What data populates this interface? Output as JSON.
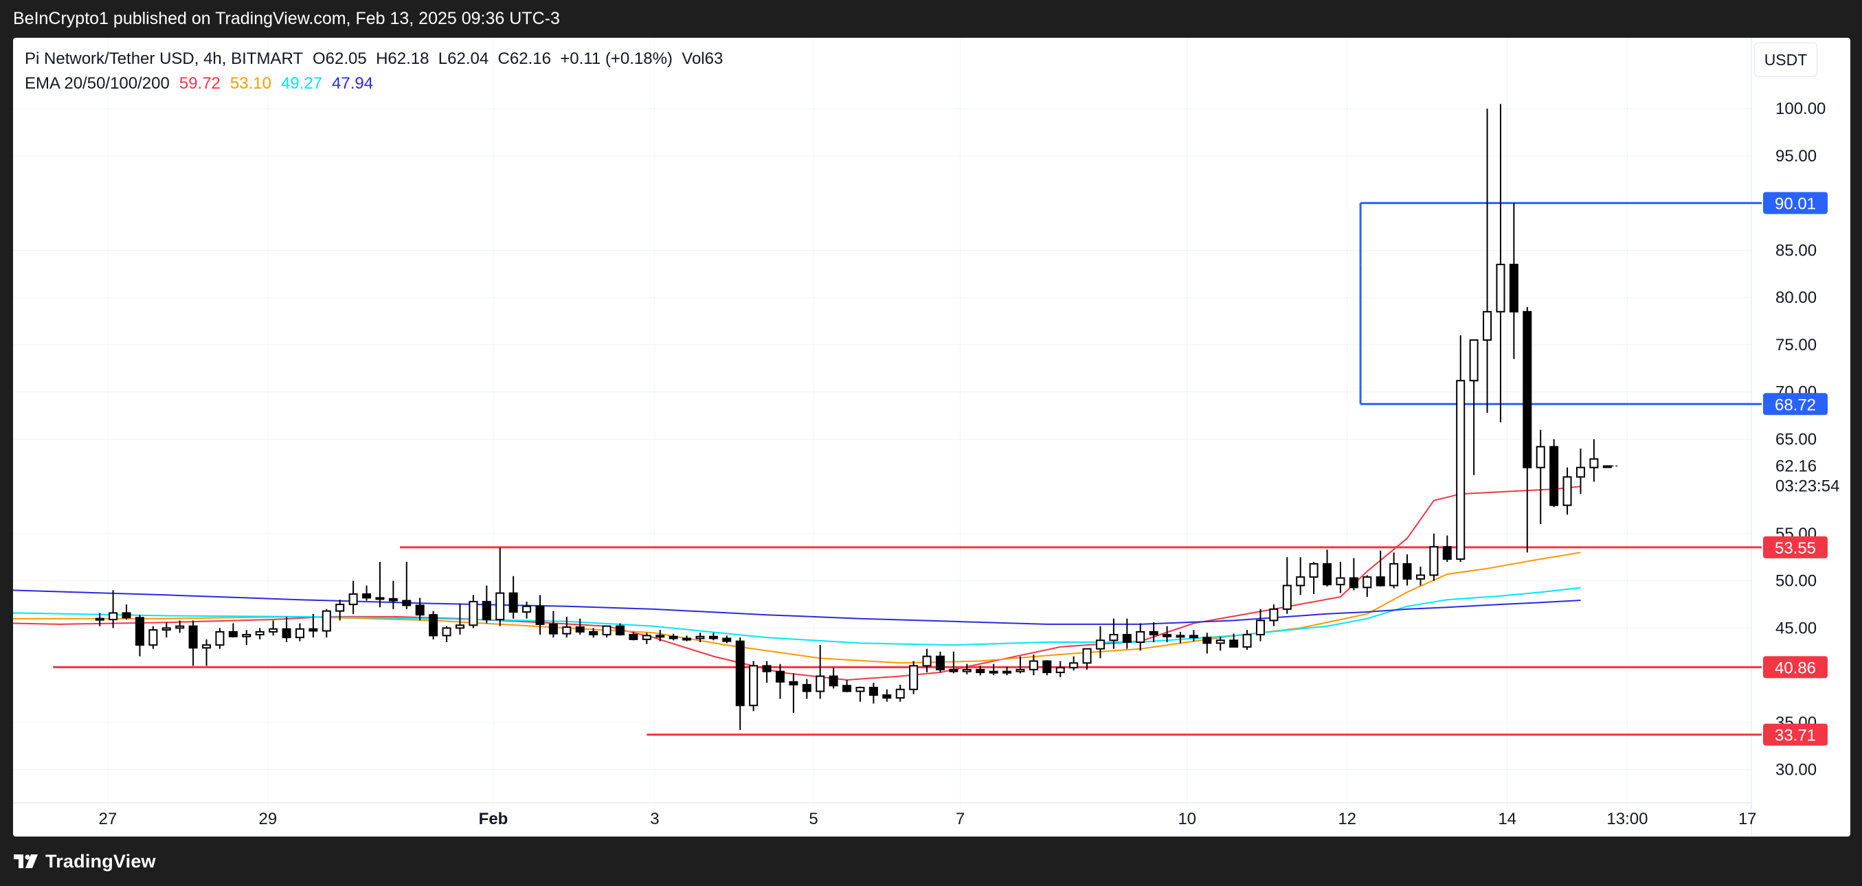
{
  "header": {
    "published": "BeInCrypto1 published on TradingView.com, Feb 13, 2025 09:36 UTC-3"
  },
  "footer": {
    "brand": "TradingView"
  },
  "currency_button": "USDT",
  "legend": {
    "symbol": "Pi Network/Tether USD, 4h, BITMART",
    "ohlc": "O62.05  H62.18  L62.04  C62.16  +0.11 (+0.18%)  Vol63",
    "ema_label": "EMA 20/50/100/200",
    "ema_values": [
      {
        "text": "59.72",
        "color": "#f23645"
      },
      {
        "text": "53.10",
        "color": "#ff9800"
      },
      {
        "text": "49.27",
        "color": "#00e5ff"
      },
      {
        "text": "47.94",
        "color": "#2a2ae0"
      }
    ]
  },
  "chart_data": {
    "type": "candlestick",
    "title": "Pi Network/Tether USD, 4h, BITMART",
    "ylim": [
      27.5,
      103
    ],
    "y_ticks": [
      "30.00",
      "35.00",
      "45.00",
      "50.00",
      "55.00",
      "65.00",
      "70.00",
      "75.00",
      "80.00",
      "85.00",
      "95.00",
      "100.00"
    ],
    "x_ticks": [
      {
        "label": "27",
        "x": 0.6
      },
      {
        "label": "29",
        "x": 12.6
      },
      {
        "label": "Feb",
        "x": 29.5
      },
      {
        "label": "3",
        "x": 41.6
      },
      {
        "label": "5",
        "x": 53.5
      },
      {
        "label": "7",
        "x": 64.5
      },
      {
        "label": "10",
        "x": 81.5
      },
      {
        "label": "12",
        "x": 93.5
      },
      {
        "label": "14",
        "x": 105.5
      },
      {
        "label": "13:00",
        "x": 114.5
      },
      {
        "label": "17",
        "x": 123.5
      }
    ],
    "xlim": [
      -6.5,
      123.8
    ],
    "last_price": {
      "value": 62.16,
      "label": "62.16",
      "countdown": "03:23:54"
    },
    "levels": [
      {
        "value": 90.01,
        "label": "90.01",
        "color": "#2962ff",
        "x_start": 94.5
      },
      {
        "value": 68.72,
        "label": "68.72",
        "color": "#2962ff",
        "x_start": 94.5
      },
      {
        "value": 53.55,
        "label": "53.55",
        "color": "#f23645",
        "x_start": 22.5
      },
      {
        "value": 40.86,
        "label": "40.86",
        "color": "#f23645",
        "x_start": -3.5
      },
      {
        "value": 33.71,
        "label": "33.71",
        "color": "#f23645",
        "x_start": 41.0
      }
    ],
    "candles": [
      [
        46.0,
        46.6,
        45.2,
        45.9
      ],
      [
        45.9,
        49.0,
        45.0,
        46.6
      ],
      [
        46.6,
        47.5,
        45.9,
        46.1
      ],
      [
        46.1,
        46.4,
        42.0,
        43.2
      ],
      [
        43.2,
        45.2,
        42.8,
        44.8
      ],
      [
        44.8,
        45.6,
        44.0,
        45.0
      ],
      [
        45.0,
        45.8,
        44.5,
        45.2
      ],
      [
        45.2,
        45.8,
        41.0,
        42.9
      ],
      [
        42.9,
        43.8,
        41.0,
        43.2
      ],
      [
        43.2,
        45.0,
        42.8,
        44.6
      ],
      [
        44.6,
        45.5,
        44.0,
        44.1
      ],
      [
        44.1,
        44.8,
        43.2,
        44.3
      ],
      [
        44.3,
        45.0,
        43.8,
        44.6
      ],
      [
        44.6,
        45.8,
        44.2,
        44.9
      ],
      [
        44.9,
        46.2,
        43.5,
        44.0
      ],
      [
        44.0,
        45.5,
        43.6,
        44.9
      ],
      [
        44.9,
        46.5,
        44.0,
        44.7
      ],
      [
        44.7,
        47.0,
        44.0,
        46.8
      ],
      [
        46.8,
        48.0,
        45.8,
        47.5
      ],
      [
        47.5,
        50.0,
        46.5,
        48.6
      ],
      [
        48.6,
        49.5,
        47.9,
        48.2
      ],
      [
        48.2,
        52.0,
        47.2,
        48.1
      ],
      [
        48.1,
        50.0,
        47.0,
        47.9
      ],
      [
        47.9,
        52.0,
        47.0,
        47.4
      ],
      [
        47.4,
        48.2,
        45.8,
        46.4
      ],
      [
        46.4,
        46.8,
        43.8,
        44.2
      ],
      [
        44.2,
        45.2,
        43.5,
        45.0
      ],
      [
        45.0,
        47.6,
        44.3,
        45.3
      ],
      [
        45.3,
        48.5,
        45.0,
        47.8
      ],
      [
        47.8,
        49.5,
        45.5,
        45.9
      ],
      [
        45.9,
        53.5,
        45.2,
        48.7
      ],
      [
        48.7,
        50.5,
        46.0,
        46.7
      ],
      [
        46.7,
        47.8,
        46.0,
        47.3
      ],
      [
        47.3,
        48.5,
        44.3,
        45.4
      ],
      [
        45.4,
        46.8,
        44.0,
        44.4
      ],
      [
        44.4,
        46.2,
        44.0,
        45.1
      ],
      [
        45.1,
        46.0,
        44.3,
        44.6
      ],
      [
        44.6,
        45.0,
        44.0,
        44.3
      ],
      [
        44.3,
        45.2,
        44.0,
        45.2
      ],
      [
        45.2,
        45.5,
        44.2,
        44.3
      ],
      [
        44.3,
        44.6,
        43.7,
        43.8
      ],
      [
        43.8,
        44.5,
        43.3,
        44.2
      ],
      [
        44.2,
        44.8,
        43.6,
        44.1
      ],
      [
        44.1,
        44.4,
        43.7,
        43.9
      ],
      [
        43.9,
        44.2,
        43.6,
        43.9
      ],
      [
        43.9,
        44.5,
        43.5,
        44.1
      ],
      [
        44.1,
        44.5,
        43.7,
        43.9
      ],
      [
        43.9,
        44.2,
        43.4,
        43.6
      ],
      [
        43.6,
        44.0,
        34.2,
        36.8
      ],
      [
        36.8,
        41.5,
        36.2,
        41.0
      ],
      [
        41.0,
        41.5,
        39.2,
        40.4
      ],
      [
        40.4,
        41.2,
        37.5,
        39.3
      ],
      [
        39.3,
        40.2,
        36.0,
        39.0
      ],
      [
        39.0,
        39.6,
        37.5,
        38.3
      ],
      [
        38.3,
        43.2,
        37.5,
        39.9
      ],
      [
        39.9,
        40.8,
        38.6,
        38.9
      ],
      [
        38.9,
        39.5,
        38.2,
        38.3
      ],
      [
        38.3,
        38.8,
        37.2,
        38.7
      ],
      [
        38.7,
        39.2,
        37.0,
        37.9
      ],
      [
        37.9,
        38.5,
        37.2,
        37.6
      ],
      [
        37.6,
        39.0,
        37.2,
        38.5
      ],
      [
        38.5,
        41.5,
        38.0,
        41.0
      ],
      [
        41.0,
        42.8,
        40.3,
        42.0
      ],
      [
        42.0,
        42.5,
        40.3,
        40.6
      ],
      [
        40.6,
        42.5,
        40.2,
        40.4
      ],
      [
        40.4,
        41.2,
        40.1,
        40.6
      ],
      [
        40.6,
        41.0,
        40.0,
        40.3
      ],
      [
        40.3,
        41.2,
        40.0,
        40.4
      ],
      [
        40.4,
        40.9,
        40.0,
        40.4
      ],
      [
        40.4,
        42.0,
        40.2,
        40.6
      ],
      [
        40.6,
        42.2,
        40.0,
        41.5
      ],
      [
        41.5,
        41.6,
        40.0,
        40.3
      ],
      [
        40.3,
        41.5,
        39.8,
        40.8
      ],
      [
        40.8,
        42.0,
        40.5,
        41.3
      ],
      [
        41.3,
        42.2,
        40.6,
        42.8
      ],
      [
        42.8,
        45.2,
        41.8,
        43.7
      ],
      [
        43.7,
        46.0,
        42.8,
        44.3
      ],
      [
        44.3,
        46.0,
        42.8,
        43.5
      ],
      [
        43.5,
        45.5,
        42.6,
        44.6
      ],
      [
        44.6,
        45.6,
        43.5,
        44.3
      ],
      [
        44.3,
        45.2,
        43.5,
        44.1
      ],
      [
        44.1,
        44.6,
        43.4,
        44.2
      ],
      [
        44.2,
        44.8,
        43.6,
        44.0
      ],
      [
        44.0,
        44.5,
        42.3,
        43.4
      ],
      [
        43.4,
        44.1,
        42.6,
        43.7
      ],
      [
        43.7,
        44.4,
        43.0,
        43.0
      ],
      [
        43.0,
        44.8,
        42.7,
        44.3
      ],
      [
        44.3,
        47.0,
        43.6,
        45.8
      ],
      [
        45.8,
        47.5,
        45.2,
        47.0
      ],
      [
        47.0,
        52.5,
        46.5,
        49.5
      ],
      [
        49.5,
        52.5,
        48.5,
        50.4
      ],
      [
        50.4,
        52.0,
        48.6,
        51.8
      ],
      [
        51.8,
        53.3,
        49.4,
        49.6
      ],
      [
        49.6,
        52.0,
        48.7,
        50.3
      ],
      [
        50.3,
        52.4,
        49.0,
        49.3
      ],
      [
        49.3,
        50.6,
        48.3,
        50.4
      ],
      [
        50.4,
        53.2,
        49.4,
        49.5
      ],
      [
        49.5,
        53.0,
        49.2,
        51.8
      ],
      [
        51.8,
        52.8,
        49.5,
        50.2
      ],
      [
        50.2,
        51.5,
        49.5,
        50.6
      ],
      [
        50.6,
        55.0,
        50.0,
        53.6
      ],
      [
        53.6,
        54.8,
        52.0,
        52.3
      ],
      [
        52.3,
        76.0,
        52.0,
        71.2
      ],
      [
        71.2,
        75.0,
        61.2,
        75.5
      ],
      [
        75.5,
        100.0,
        67.8,
        78.5
      ],
      [
        78.5,
        100.5,
        66.8,
        83.5
      ],
      [
        83.5,
        90.0,
        73.5,
        78.5
      ],
      [
        78.5,
        79.0,
        53.0,
        62.0
      ],
      [
        62.0,
        66.0,
        56.0,
        64.2
      ],
      [
        64.2,
        65.0,
        57.8,
        58.0
      ],
      [
        58.0,
        62.0,
        57.0,
        61.0
      ],
      [
        61.0,
        64.0,
        59.2,
        62.0
      ],
      [
        62.0,
        65.0,
        60.5,
        62.9
      ],
      [
        62.05,
        62.18,
        62.04,
        62.16
      ]
    ],
    "ema_series": [
      {
        "name": "EMA 20",
        "color": "#f23645",
        "points": [
          [
            -6.5,
            45.5
          ],
          [
            -3,
            45.4
          ],
          [
            5,
            45.6
          ],
          [
            13,
            45.9
          ],
          [
            17,
            46.2
          ],
          [
            22,
            46.2
          ],
          [
            27,
            46.0
          ],
          [
            33,
            45.6
          ],
          [
            38,
            45.2
          ],
          [
            41.5,
            44.0
          ],
          [
            46,
            42.0
          ],
          [
            51,
            40.3
          ],
          [
            56,
            39.5
          ],
          [
            60,
            39.9
          ],
          [
            63,
            40.3
          ],
          [
            67,
            41.5
          ],
          [
            72,
            43.0
          ],
          [
            78,
            43.6
          ],
          [
            82,
            45.5
          ],
          [
            88,
            47.0
          ],
          [
            93,
            48.3
          ],
          [
            95,
            51.0
          ],
          [
            98,
            54.5
          ],
          [
            100,
            58.5
          ],
          [
            102,
            59.2
          ],
          [
            106,
            59.5
          ],
          [
            109,
            59.7
          ],
          [
            111,
            60.0
          ]
        ]
      },
      {
        "name": "EMA 50",
        "color": "#ff9800",
        "points": [
          [
            -6.5,
            46.0
          ],
          [
            5,
            46.0
          ],
          [
            15,
            46.2
          ],
          [
            25,
            45.8
          ],
          [
            35,
            45.0
          ],
          [
            41.5,
            44.5
          ],
          [
            47,
            43.2
          ],
          [
            54,
            41.8
          ],
          [
            60,
            41.3
          ],
          [
            66,
            41.5
          ],
          [
            72,
            42.2
          ],
          [
            78,
            42.8
          ],
          [
            84,
            44.0
          ],
          [
            90,
            45.0
          ],
          [
            95,
            46.5
          ],
          [
            98,
            48.8
          ],
          [
            101,
            50.7
          ],
          [
            104,
            51.3
          ],
          [
            108,
            52.3
          ],
          [
            111,
            53.0
          ]
        ]
      },
      {
        "name": "EMA 100",
        "color": "#00e5ff",
        "points": [
          [
            -6.5,
            46.6
          ],
          [
            5,
            46.3
          ],
          [
            15,
            46.2
          ],
          [
            25,
            46.0
          ],
          [
            35,
            45.7
          ],
          [
            41.5,
            45.2
          ],
          [
            50,
            44.0
          ],
          [
            57,
            43.4
          ],
          [
            64,
            43.2
          ],
          [
            71,
            43.5
          ],
          [
            78,
            43.5
          ],
          [
            85,
            44.2
          ],
          [
            92,
            45.2
          ],
          [
            95,
            46.0
          ],
          [
            98,
            47.3
          ],
          [
            101,
            48.0
          ],
          [
            105,
            48.4
          ],
          [
            108,
            48.8
          ],
          [
            111,
            49.27
          ]
        ]
      },
      {
        "name": "EMA 200",
        "color": "#2a2ae0",
        "points": [
          [
            -6.5,
            49.0
          ],
          [
            5,
            48.5
          ],
          [
            15,
            48.0
          ],
          [
            25,
            47.6
          ],
          [
            35,
            47.3
          ],
          [
            41.5,
            47.0
          ],
          [
            50,
            46.4
          ],
          [
            57,
            46.0
          ],
          [
            64,
            45.7
          ],
          [
            71,
            45.4
          ],
          [
            78,
            45.4
          ],
          [
            85,
            45.8
          ],
          [
            92,
            46.5
          ],
          [
            95,
            46.7
          ],
          [
            98,
            47.0
          ],
          [
            101,
            47.2
          ],
          [
            105,
            47.5
          ],
          [
            108,
            47.7
          ],
          [
            111,
            47.94
          ]
        ]
      }
    ]
  }
}
